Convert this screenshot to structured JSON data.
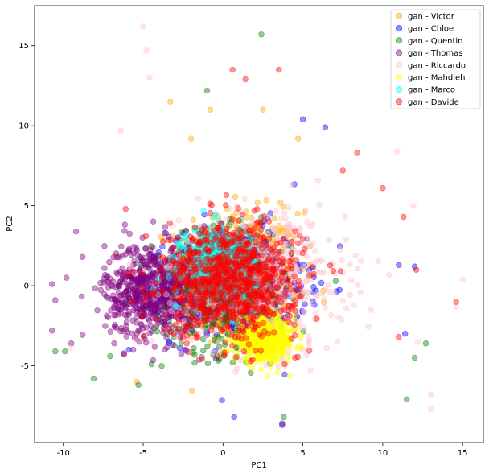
{
  "chart_data": {
    "type": "scatter",
    "title": "",
    "xlabel": "PC1",
    "ylabel": "PC2",
    "xlim": [
      -11.8,
      16.3
    ],
    "ylim": [
      -9.8,
      17.5
    ],
    "x_ticks": [
      -10,
      -5,
      0,
      5,
      10,
      15
    ],
    "y_ticks": [
      -5,
      0,
      5,
      10,
      15
    ],
    "grid": false,
    "legend_position": "top-right",
    "marker_alpha": 0.42,
    "series": [
      {
        "name": "gan - Victor",
        "color": "#ffa500",
        "center": [
          1.0,
          1.0
        ],
        "spread": [
          3.8,
          3.6
        ],
        "n": 520,
        "extra_points": [
          [
            -3.3,
            11.5
          ],
          [
            -0.8,
            11.0
          ],
          [
            2.5,
            11.0
          ],
          [
            -2.0,
            9.2
          ],
          [
            4.7,
            9.2
          ],
          [
            -5.4,
            -6.0
          ]
        ]
      },
      {
        "name": "gan - Chloe",
        "color": "#0000ff",
        "center": [
          1.0,
          0.0
        ],
        "spread": [
          4.2,
          3.7
        ],
        "n": 460,
        "extra_points": [
          [
            5.0,
            10.4
          ],
          [
            6.4,
            9.9
          ],
          [
            11.0,
            1.3
          ],
          [
            12.0,
            1.2
          ],
          [
            11.4,
            -3.0
          ],
          [
            3.7,
            -8.7
          ],
          [
            0.7,
            -8.2
          ],
          [
            -5.9,
            -4.0
          ]
        ]
      },
      {
        "name": "gan - Quentin",
        "color": "#008000",
        "center": [
          0.0,
          -0.5
        ],
        "spread": [
          4.4,
          3.7
        ],
        "n": 460,
        "extra_points": [
          [
            2.4,
            15.7
          ],
          [
            -1.0,
            12.2
          ],
          [
            -10.5,
            -4.1
          ],
          [
            -9.9,
            -4.1
          ],
          [
            -8.1,
            -5.8
          ],
          [
            11.5,
            -7.1
          ],
          [
            12.7,
            -3.6
          ],
          [
            12.0,
            -4.5
          ],
          [
            -5.3,
            -6.2
          ],
          [
            3.8,
            -8.2
          ]
        ]
      },
      {
        "name": "gan - Thomas",
        "color": "#800080",
        "center": [
          -4.5,
          -0.3
        ],
        "spread": [
          2.9,
          3.0
        ],
        "n": 620,
        "extra_points": [
          [
            -10.7,
            0.1
          ],
          [
            -10.5,
            -0.9
          ],
          [
            -10.7,
            -2.8
          ],
          [
            -9.8,
            0.5
          ],
          [
            -9.2,
            3.4
          ],
          [
            -9.5,
            -3.6
          ],
          [
            -8.8,
            1.8
          ],
          [
            3.7,
            -8.6
          ]
        ]
      },
      {
        "name": "gan - Riccardo",
        "color": "#ffc0cb",
        "center": [
          2.5,
          0.3
        ],
        "spread": [
          5.2,
          4.3
        ],
        "n": 560,
        "extra_points": [
          [
            -5.0,
            16.2
          ],
          [
            -4.8,
            14.7
          ],
          [
            -4.6,
            13.0
          ],
          [
            15.0,
            0.4
          ],
          [
            14.6,
            -1.3
          ],
          [
            13.0,
            -6.8
          ],
          [
            10.9,
            8.4
          ],
          [
            -6.4,
            9.7
          ],
          [
            12.2,
            -3.5
          ],
          [
            13.0,
            -7.7
          ],
          [
            -9.6,
            -3.9
          ]
        ]
      },
      {
        "name": "gan - Mahdieh",
        "color": "#ffff00",
        "center": [
          2.6,
          -3.4
        ],
        "spread": [
          1.9,
          1.3
        ],
        "n": 520,
        "extra_points": []
      },
      {
        "name": "gan - Marco",
        "color": "#00ffff",
        "center": [
          -0.2,
          1.4
        ],
        "spread": [
          2.3,
          2.2
        ],
        "n": 520,
        "extra_points": []
      },
      {
        "name": "gan - Davide",
        "color": "#ff0000",
        "center": [
          0.5,
          0.3
        ],
        "spread": [
          4.2,
          3.5
        ],
        "n": 900,
        "extra_points": [
          [
            0.6,
            13.5
          ],
          [
            3.5,
            13.5
          ],
          [
            1.4,
            12.9
          ],
          [
            14.6,
            -1.0
          ],
          [
            7.5,
            7.2
          ],
          [
            10.0,
            6.1
          ],
          [
            11.3,
            4.3
          ],
          [
            -6.1,
            4.8
          ],
          [
            8.4,
            8.3
          ],
          [
            12.1,
            1.0
          ],
          [
            11.0,
            -3.2
          ]
        ]
      }
    ]
  }
}
